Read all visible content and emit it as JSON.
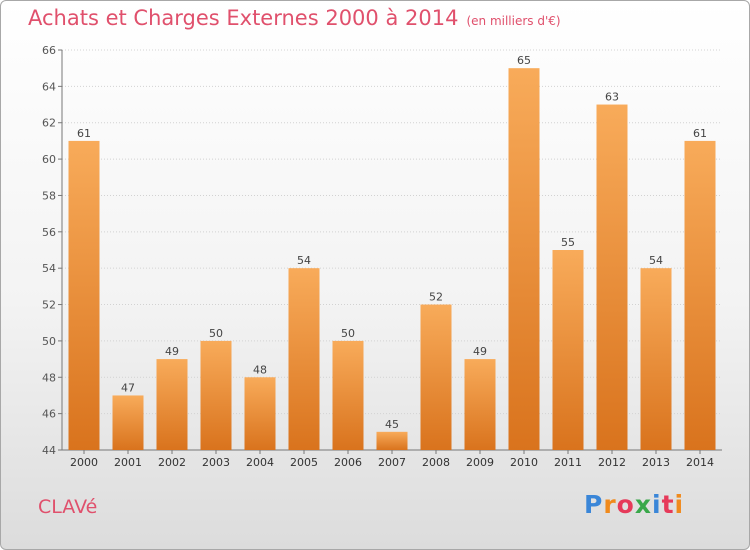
{
  "header": {
    "title": "Achats et Charges Externes 2000 à 2014",
    "subtitle": "(en milliers d'€)"
  },
  "footer": {
    "commune": "CLAVé",
    "logo": {
      "text": "Proxiti",
      "colors": [
        "#3a86d8",
        "#f08a1c",
        "#e63a5a",
        "#39a84a",
        "#3a86d8",
        "#e63a5a",
        "#f08a1c"
      ]
    }
  },
  "chart_data": {
    "type": "bar",
    "title": "Achats et Charges Externes 2000 à 2014",
    "subtitle": "(en milliers d'€)",
    "categories": [
      "2000",
      "2001",
      "2002",
      "2003",
      "2004",
      "2005",
      "2006",
      "2007",
      "2008",
      "2009",
      "2010",
      "2011",
      "2012",
      "2013",
      "2014"
    ],
    "values": [
      61,
      47,
      49,
      50,
      48,
      54,
      50,
      45,
      52,
      49,
      65,
      55,
      63,
      54,
      61
    ],
    "data_labels": [
      "61",
      "47",
      "49",
      "50",
      "48",
      "54",
      "50",
      "45",
      "52",
      "49",
      "65",
      "55",
      "63",
      "54",
      "61"
    ],
    "y_ticks": [
      "44",
      "46",
      "48",
      "50",
      "52",
      "54",
      "56",
      "58",
      "60",
      "62",
      "64",
      "66"
    ],
    "ylim": [
      44,
      66
    ],
    "grid": true,
    "legend": "none",
    "xlabel": "",
    "ylabel": "",
    "bar_color_top": "#f8ab5a",
    "bar_color_bottom": "#d9731d"
  }
}
